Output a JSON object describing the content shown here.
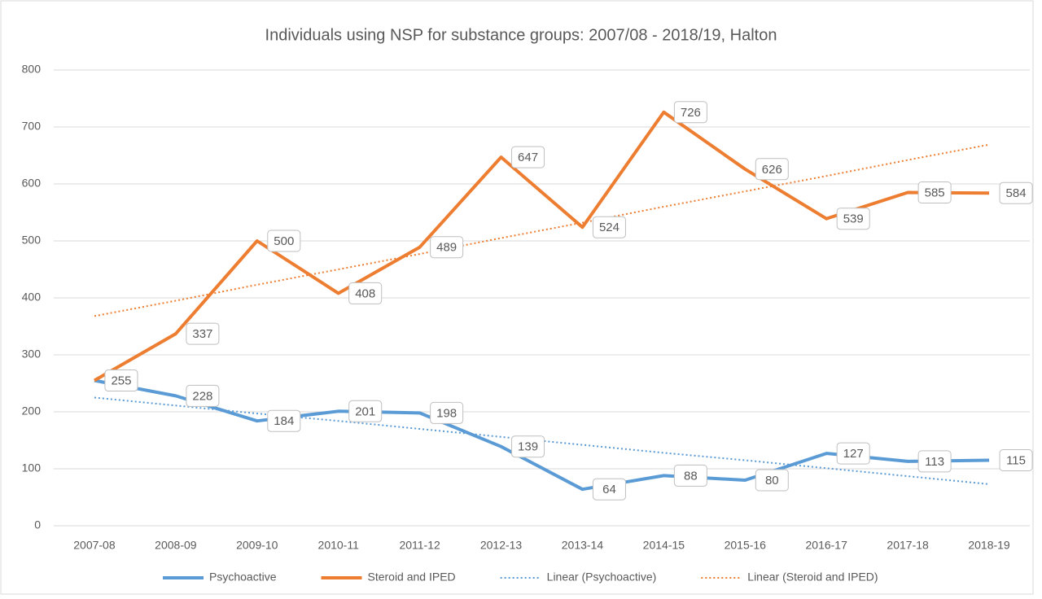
{
  "chart_data": {
    "type": "line",
    "title": "Individuals using NSP for substance groups: 2007/08 - 2018/19, Halton",
    "categories": [
      "2007-08",
      "2008-09",
      "2009-10",
      "2010-11",
      "2011-12",
      "2012-13",
      "2013-14",
      "2014-15",
      "2015-16",
      "2016-17",
      "2017-18",
      "2018-19"
    ],
    "series": [
      {
        "name": "Psychoactive",
        "color": "#5b9bd5",
        "dash": false,
        "labels": true,
        "values": [
          255,
          228,
          184,
          201,
          198,
          139,
          64,
          88,
          80,
          127,
          113,
          115
        ]
      },
      {
        "name": "Steroid and IPED",
        "color": "#ed7d31",
        "dash": false,
        "labels": true,
        "values": [
          255,
          337,
          500,
          408,
          489,
          647,
          524,
          726,
          626,
          539,
          585,
          584
        ]
      },
      {
        "name": "Linear (Psychoactive)",
        "color": "#5b9bd5",
        "dash": true,
        "labels": false,
        "values": [
          225,
          211,
          197,
          184,
          170,
          156,
          142,
          128,
          115,
          101,
          87,
          73
        ]
      },
      {
        "name": "Linear (Steroid and IPED)",
        "color": "#ed7d31",
        "dash": true,
        "labels": false,
        "values": [
          368,
          395,
          423,
          450,
          477,
          505,
          532,
          560,
          587,
          614,
          642,
          669
        ]
      }
    ],
    "ylim": [
      0,
      800
    ],
    "yticks": [
      0,
      100,
      200,
      300,
      400,
      500,
      600,
      700,
      800
    ],
    "grid": true,
    "legend": "bottom"
  }
}
